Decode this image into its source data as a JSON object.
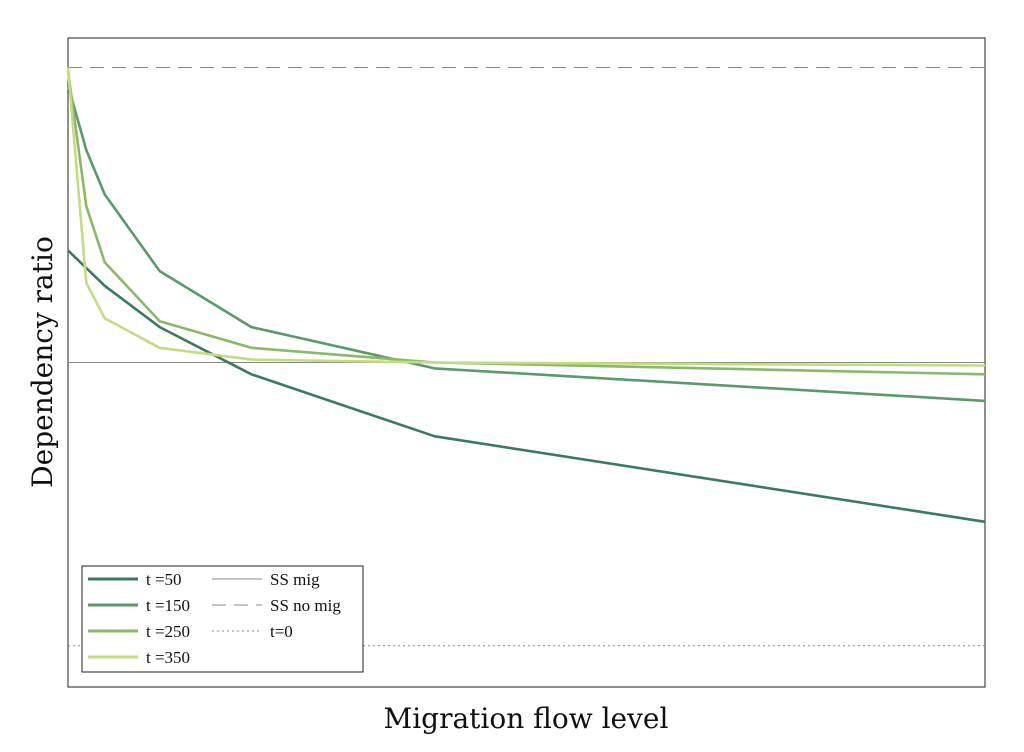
{
  "chart_data": {
    "type": "line",
    "title": "",
    "xlabel": "Migration flow level",
    "ylabel": "Dependency ratio",
    "xlim": [
      0,
      10
    ],
    "ylim": [
      -1.1,
      1.1
    ],
    "grid": false,
    "legend_position": "bottom-left",
    "series": [
      {
        "name": "t =50",
        "color": "#3a7a62",
        "x": [
          0,
          0.4,
          1,
          2,
          4,
          10
        ],
        "y": [
          0.38,
          0.26,
          0.12,
          -0.04,
          -0.25,
          -0.54
        ]
      },
      {
        "name": "t =150",
        "color": "#5a9a6a",
        "x": [
          0,
          0.2,
          0.4,
          1,
          2,
          4,
          10
        ],
        "y": [
          0.94,
          0.72,
          0.57,
          0.31,
          0.12,
          -0.02,
          -0.13
        ]
      },
      {
        "name": "t =250",
        "color": "#88b96a",
        "x": [
          0,
          0.2,
          0.4,
          1,
          2,
          4,
          10
        ],
        "y": [
          0.99,
          0.53,
          0.34,
          0.14,
          0.05,
          0.0,
          -0.04
        ]
      },
      {
        "name": "t =350",
        "color": "#c3dc80",
        "x": [
          0,
          0.2,
          0.4,
          1,
          2,
          4,
          10
        ],
        "y": [
          1.0,
          0.27,
          0.15,
          0.05,
          0.01,
          0.0,
          -0.01
        ]
      }
    ],
    "reference_lines": [
      {
        "name": "SS mig",
        "y": 0.0,
        "style": "solid",
        "color": "#888888"
      },
      {
        "name": "SS no mig",
        "y": 1.0,
        "style": "dashed",
        "color": "#888888"
      },
      {
        "name": "t=0",
        "y": -0.96,
        "style": "dotted",
        "color": "#888888"
      }
    ]
  }
}
